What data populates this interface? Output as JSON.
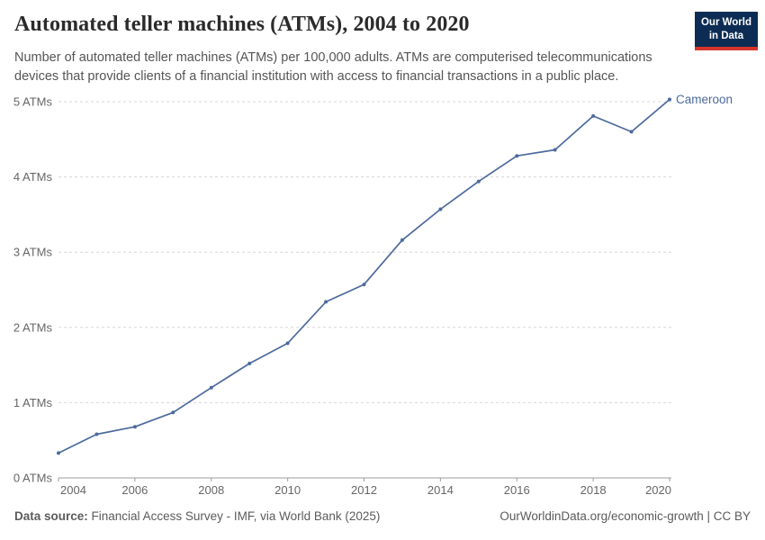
{
  "header": {
    "title": "Automated teller machines (ATMs), 2004 to 2020",
    "subtitle": "Number of automated teller machines (ATMs) per 100,000 adults. ATMs are computerised telecommunications devices that provide clients of a financial institution with access to financial transactions in a public place.",
    "logo": {
      "line1": "Our World",
      "line2": "in Data"
    }
  },
  "chart_data": {
    "type": "line",
    "title": "Automated teller machines (ATMs), 2004 to 2020",
    "x": [
      2004,
      2005,
      2006,
      2007,
      2008,
      2009,
      2010,
      2011,
      2012,
      2013,
      2014,
      2015,
      2016,
      2017,
      2018,
      2019,
      2020
    ],
    "series": [
      {
        "name": "Cameroon",
        "color": "#4C6A9C",
        "values": [
          0.33,
          0.58,
          0.68,
          0.87,
          1.2,
          1.52,
          1.79,
          2.34,
          2.57,
          3.16,
          3.57,
          3.94,
          4.28,
          4.36,
          4.81,
          4.6,
          5.03
        ]
      }
    ],
    "xlabel": "",
    "ylabel": "",
    "ylim": [
      0,
      5
    ],
    "yticks": [
      0,
      1,
      2,
      3,
      4,
      5
    ],
    "ytick_format": "{v} ATMs",
    "xticks": [
      2004,
      2006,
      2008,
      2010,
      2012,
      2014,
      2016,
      2018,
      2020
    ],
    "grid": "horizontal-dashed",
    "legend_position": "end-of-line-label"
  },
  "footer": {
    "datasource_label": "Data source:",
    "datasource_text": " Financial Access Survey - IMF, via World Bank (2025)",
    "attribution": "OurWorldinData.org/economic-growth | CC BY"
  },
  "colors": {
    "series_blue": "#4C6A9C",
    "brand_navy": "#0d2c54",
    "brand_red": "#d7352c",
    "gridline": "#d7d7d7",
    "axis": "#9e9e9e",
    "tick_text": "#666666",
    "subtitle_text": "#555555"
  }
}
